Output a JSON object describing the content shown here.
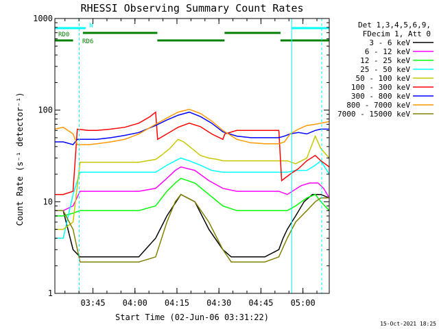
{
  "chart_data": {
    "type": "line",
    "title": "RHESSI Observing Summary Count Rates",
    "xlabel": "Start Time (02-Jun-06 03:31:22)",
    "ylabel": "Count Rate (s⁻¹ detector⁻¹)",
    "y_scale": "log",
    "ylim": [
      1,
      1000
    ],
    "xlim_minutes": [
      0,
      98
    ],
    "x_ticks": [
      {
        "label": "03:45",
        "minute": 13.6
      },
      {
        "label": "04:00",
        "minute": 28.6
      },
      {
        "label": "04:15",
        "minute": 43.6
      },
      {
        "label": "04:30",
        "minute": 58.6
      },
      {
        "label": "04:45",
        "minute": 73.6
      },
      {
        "label": "05:00",
        "minute": 88.6
      }
    ],
    "y_ticks": [
      {
        "label": "1",
        "value": 1
      },
      {
        "label": "10",
        "value": 10
      },
      {
        "label": "100",
        "value": 100
      },
      {
        "label": "1000",
        "value": 1000
      }
    ],
    "legend_header": [
      "Det 1,3,4,5,6,9,",
      "FDecim 1, Att 0"
    ],
    "legend_position": "right",
    "footer_date": "15-Oct-2021 18:25",
    "flags": [
      {
        "name": "N",
        "color": "#00ffff",
        "segments": [
          [
            0,
            11
          ],
          [
            84.6,
            98
          ]
        ]
      },
      {
        "name": "RD0",
        "color": "#008000",
        "segments": [
          [
            10,
            36.6
          ],
          [
            60.6,
            80.6
          ]
        ]
      },
      {
        "name": "RD6",
        "color": "#008000",
        "segments": [
          [
            0,
            6.5
          ],
          [
            36.6,
            60.6
          ],
          [
            80.6,
            98
          ]
        ]
      }
    ],
    "vertical_markers": [
      {
        "minute": 8.7,
        "style": "dashed",
        "color": "#00ffff"
      },
      {
        "minute": 84.6,
        "style": "solid",
        "color": "#00ffff"
      },
      {
        "minute": 95.3,
        "style": "dashed",
        "color": "#00ffff"
      }
    ],
    "series": [
      {
        "name": "3 - 6 keV",
        "color": "#000000",
        "x": [
          0,
          3,
          6.5,
          9,
          12,
          15,
          20,
          25,
          30,
          36,
          40,
          45,
          50,
          55,
          60,
          63,
          66,
          70,
          75,
          80,
          81.5,
          83,
          86,
          89,
          92,
          95,
          98
        ],
        "y": [
          8,
          8,
          3,
          2.5,
          2.5,
          2.5,
          2.5,
          2.5,
          2.5,
          4,
          7,
          12,
          10,
          5,
          3,
          2.5,
          2.5,
          2.5,
          2.5,
          3,
          4,
          5,
          7,
          10,
          12,
          12,
          11
        ]
      },
      {
        "name": "6 - 12 keV",
        "color": "#ff00ff",
        "x": [
          0,
          3,
          6.5,
          9,
          15,
          20,
          25,
          30,
          36,
          40,
          43,
          45,
          50,
          55,
          60,
          65,
          70,
          75,
          80,
          83,
          88,
          91,
          94,
          96,
          98
        ],
        "y": [
          8,
          8,
          9,
          13,
          13,
          13,
          13,
          13,
          14,
          18,
          22,
          24,
          22,
          17,
          14,
          13,
          13,
          13,
          13,
          12,
          15,
          16,
          16,
          14,
          11
        ]
      },
      {
        "name": "12 - 25 keV",
        "color": "#00ff00",
        "x": [
          0,
          3,
          6.5,
          9,
          15,
          20,
          25,
          30,
          36,
          40,
          43,
          45,
          50,
          55,
          60,
          65,
          70,
          75,
          80,
          83,
          86,
          90,
          93,
          95,
          98
        ],
        "y": [
          7,
          7,
          7.5,
          8,
          8,
          8,
          8,
          8,
          9,
          13,
          16,
          18,
          16,
          12,
          9,
          8,
          8,
          8,
          8,
          8,
          9,
          11,
          12,
          10,
          8
        ]
      },
      {
        "name": "25 - 50 keV",
        "color": "#00ffff",
        "x": [
          0,
          3,
          6.5,
          9,
          15,
          20,
          25,
          30,
          36,
          40,
          43,
          45,
          48,
          52,
          56,
          60,
          65,
          70,
          75,
          80,
          83,
          86,
          90,
          93,
          95,
          98
        ],
        "y": [
          4,
          4,
          12,
          21,
          21,
          21,
          21,
          21,
          21,
          25,
          28,
          30,
          28,
          25,
          22,
          21,
          21,
          21,
          21,
          21,
          21,
          22,
          22,
          25,
          28,
          20
        ]
      },
      {
        "name": "50 - 100 keV",
        "color": "#c8c800",
        "x": [
          0,
          3,
          6.5,
          9,
          15,
          20,
          25,
          30,
          36,
          38,
          41,
          44,
          46,
          49,
          52,
          55,
          58,
          60,
          65,
          70,
          75,
          80,
          83,
          86,
          90,
          93,
          95,
          98
        ],
        "y": [
          5,
          5,
          6,
          27,
          27,
          27,
          27,
          27,
          29,
          32,
          38,
          48,
          45,
          38,
          32,
          30,
          29,
          28,
          28,
          28,
          28,
          28,
          28,
          26,
          30,
          52,
          38,
          30
        ]
      },
      {
        "name": "100 - 300 keV",
        "color": "#ff0000",
        "x": [
          0,
          3,
          6.5,
          8,
          12,
          15,
          20,
          25,
          30,
          34,
          36,
          36.7,
          40,
          44,
          48,
          52,
          56,
          60,
          60.7,
          65,
          70,
          75,
          80,
          81,
          84,
          87,
          90,
          93,
          95,
          98
        ],
        "y": [
          12,
          12,
          13,
          62,
          60,
          60,
          62,
          65,
          72,
          85,
          95,
          48,
          55,
          65,
          72,
          66,
          55,
          48,
          55,
          60,
          60,
          60,
          60,
          17,
          20,
          23,
          28,
          32,
          28,
          24
        ]
      },
      {
        "name": "300 - 800 keV",
        "color": "#0000ff",
        "x": [
          0,
          3,
          6.5,
          8,
          12,
          15,
          20,
          25,
          30,
          36,
          40,
          44,
          48,
          52,
          56,
          60,
          65,
          70,
          75,
          80,
          82,
          84,
          87,
          90,
          93,
          95,
          98
        ],
        "y": [
          45,
          45,
          42,
          48,
          48,
          48,
          50,
          53,
          57,
          68,
          78,
          88,
          95,
          85,
          72,
          58,
          52,
          50,
          50,
          50,
          52,
          55,
          57,
          55,
          60,
          62,
          62
        ]
      },
      {
        "name": "800 - 7000 keV",
        "color": "#ff9900",
        "x": [
          0,
          3,
          6.5,
          8,
          12,
          15,
          20,
          25,
          30,
          36,
          40,
          44,
          48,
          52,
          56,
          60,
          65,
          70,
          75,
          80,
          82,
          84,
          87,
          90,
          93,
          95,
          98
        ],
        "y": [
          62,
          65,
          55,
          42,
          42,
          43,
          45,
          48,
          55,
          70,
          82,
          95,
          102,
          92,
          76,
          60,
          48,
          44,
          43,
          43,
          45,
          55,
          62,
          68,
          70,
          72,
          75
        ]
      },
      {
        "name": "7000 - 15000 keV",
        "color": "#808000",
        "x": [
          0,
          3,
          6.5,
          9,
          15,
          20,
          25,
          30,
          36,
          40,
          43,
          45,
          50,
          55,
          60,
          63,
          66,
          70,
          75,
          80,
          83,
          86,
          90,
          93,
          95,
          98
        ],
        "y": [
          8,
          8,
          5,
          2.2,
          2.2,
          2.2,
          2.2,
          2.2,
          2.5,
          6,
          10,
          12,
          10,
          6,
          3,
          2.2,
          2.2,
          2.2,
          2.2,
          2.5,
          4,
          6,
          8,
          10,
          11,
          11
        ]
      }
    ]
  }
}
